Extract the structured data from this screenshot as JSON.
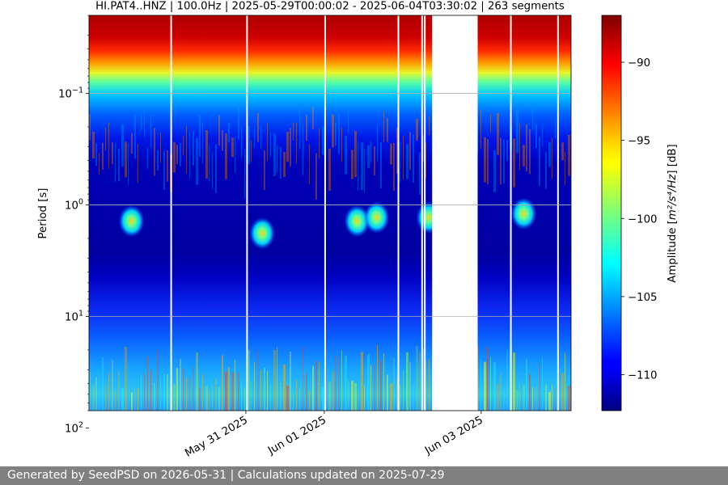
{
  "chart_data": {
    "type": "heatmap",
    "title": "HI.PAT4..HNZ | 100.0Hz | 2025-05-29T00:00:02 - 2025-06-04T03:30:02 | 263 segments",
    "ylabel": "Period [s]",
    "y_scale": "log",
    "y_inverted": true,
    "x_start": "2025-05-29T00:00:02",
    "x_end": "2025-06-04T03:30:02",
    "ylim": [
      0.02,
      70
    ],
    "x_ticks": [
      {
        "date": "2025-05-31T00:00:00",
        "label": "May 31 2025"
      },
      {
        "date": "2025-06-01T00:00:00",
        "label": "Jun 01 2025"
      },
      {
        "date": "2025-06-03T00:00:00",
        "label": "Jun 03 2025"
      }
    ],
    "y_ticks": [
      {
        "value": 0.1,
        "base": "10",
        "exp": "−1"
      },
      {
        "value": 1,
        "base": "10",
        "exp": "0"
      },
      {
        "value": 10,
        "base": "10",
        "exp": "1"
      },
      {
        "value": 100,
        "base": "10",
        "exp": "2"
      }
    ],
    "grid": "horizontal",
    "colormap": "jet",
    "colorbar": {
      "label_prefix": "Amplitude [",
      "label_unit": "m²/s⁴/Hz",
      "label_suffix": "] [dB]",
      "range": [
        -112.3,
        -87
      ],
      "ticks": [
        {
          "value": -90,
          "label": "−90"
        },
        {
          "value": -95,
          "label": "−95"
        },
        {
          "value": -100,
          "label": "−100"
        },
        {
          "value": -105,
          "label": "−105"
        },
        {
          "value": -110,
          "label": "−110"
        }
      ]
    },
    "data_gaps": [
      {
        "start": "2025-05-30T00:54:00",
        "end": "2025-05-30T01:19:00"
      },
      {
        "start": "2025-05-31T00:07:00",
        "end": "2025-05-31T00:26:00"
      },
      {
        "start": "2025-06-01T00:00:00",
        "end": "2025-06-01T00:15:00"
      },
      {
        "start": "2025-06-01T22:25:00",
        "end": "2025-06-01T22:45:00"
      },
      {
        "start": "2025-06-02T05:40:00",
        "end": "2025-06-02T05:55:00"
      },
      {
        "start": "2025-06-02T06:30:00",
        "end": "2025-06-02T07:00:00"
      },
      {
        "start": "2025-06-02T09:00:00",
        "end": "2025-06-02T22:55:00"
      },
      {
        "start": "2025-06-03T08:50:00",
        "end": "2025-06-03T09:10:00"
      },
      {
        "start": "2025-06-03T23:15:00",
        "end": "2025-06-03T23:35:00"
      }
    ],
    "spectral_levels": [
      {
        "period_min": 0.02,
        "period_max": 0.06,
        "amplitude_db": -88
      },
      {
        "period_min": 0.06,
        "period_max": 0.09,
        "amplitude_db": -90
      },
      {
        "period_min": 0.09,
        "period_max": 0.15,
        "amplitude_db": -95
      },
      {
        "period_min": 0.15,
        "period_max": 0.3,
        "amplitude_db": -103
      },
      {
        "period_min": 0.3,
        "period_max": 1.0,
        "amplitude_db": -109
      },
      {
        "period_min": 1.0,
        "period_max": 10,
        "amplitude_db": -111
      },
      {
        "period_min": 10,
        "period_max": 30,
        "amplitude_db": -109
      },
      {
        "period_min": 30,
        "period_max": 70,
        "amplitude_db": -106
      }
    ],
    "events": [
      {
        "time": "2025-05-29T13:00:00",
        "period": 1.4,
        "amplitude_db": -101
      },
      {
        "time": "2025-05-31T05:00:00",
        "period": 1.8,
        "amplitude_db": -104
      },
      {
        "time": "2025-06-01T10:00:00",
        "period": 1.4,
        "amplitude_db": -103
      },
      {
        "time": "2025-06-01T16:00:00",
        "period": 1.3,
        "amplitude_db": -104
      },
      {
        "time": "2025-06-02T08:00:00",
        "period": 1.3,
        "amplitude_db": -103
      },
      {
        "time": "2025-06-03T13:00:00",
        "period": 1.2,
        "amplitude_db": -103
      }
    ]
  },
  "footer": {
    "text": "Generated by SeedPSD on 2026-05-31 | Calculations updated on 2025-07-29"
  }
}
